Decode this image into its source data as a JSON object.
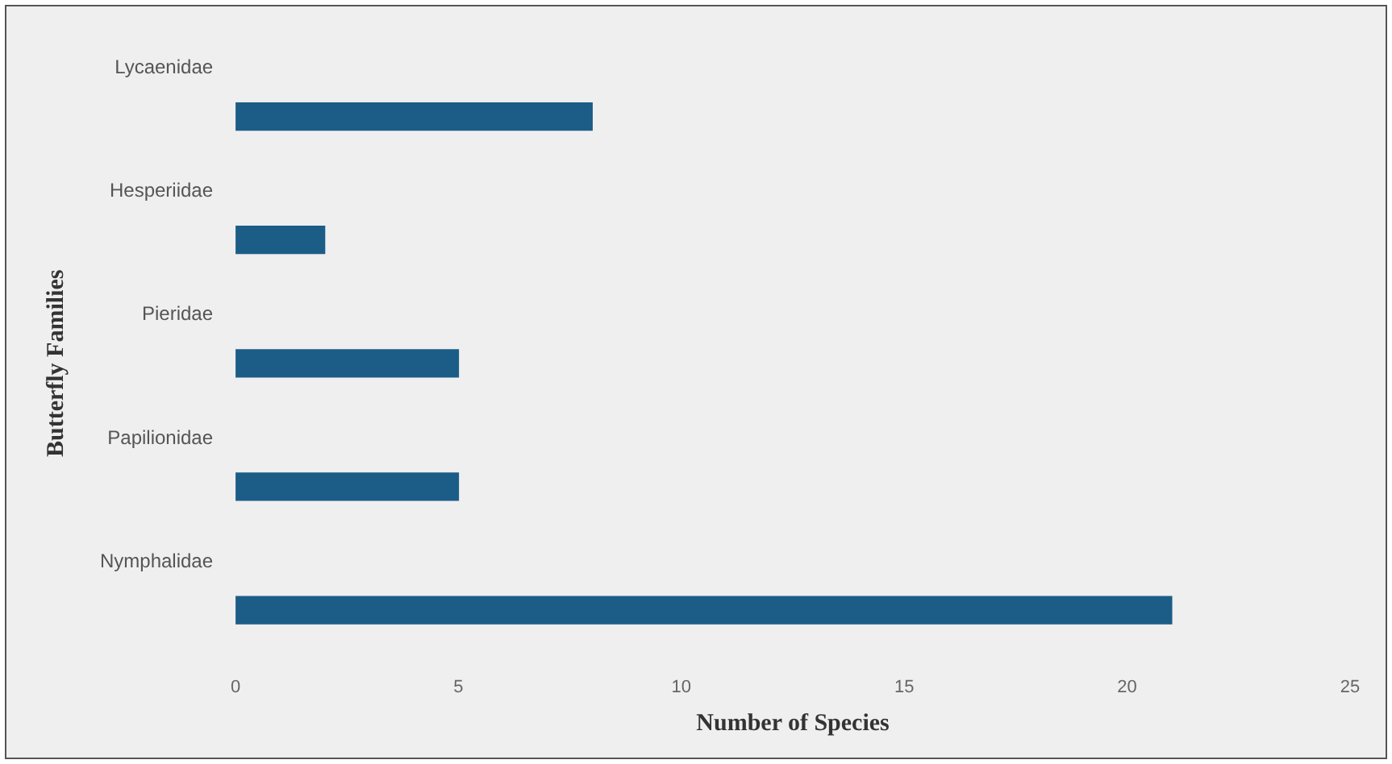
{
  "chart_data": {
    "type": "bar",
    "orientation": "horizontal",
    "categories": [
      "Lycaenidae",
      "Hesperiidae",
      "Pieridae",
      "Papilionidae",
      "Nymphalidae"
    ],
    "values": [
      8,
      2,
      5,
      5,
      21
    ],
    "color": "#1c5d87",
    "xlim": [
      0,
      25
    ],
    "xticks": [
      0,
      5,
      10,
      15,
      20,
      25
    ],
    "xlabel": "Number of Species",
    "ylabel": "Butterfly Families",
    "grid": false,
    "legend": false
  }
}
